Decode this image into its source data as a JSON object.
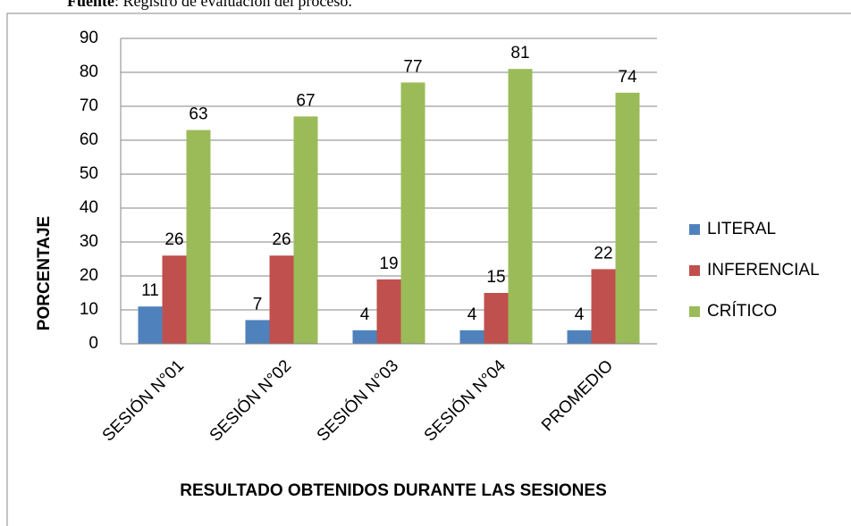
{
  "source": {
    "label": "Fuente",
    "text": ": Registro de evaluación del proceso."
  },
  "chart_data": {
    "type": "bar",
    "xlabel": "RESULTADO OBTENIDOS DURANTE LAS SESIONES",
    "ylabel": "PORCENTAJE",
    "categories": [
      "SESIÓN N°01",
      "SESIÓN N°02",
      "SESIÓN N°03",
      "SESIÓN N°04",
      "PROMEDIO"
    ],
    "series": [
      {
        "name": "LITERAL",
        "color": "#4f81bd",
        "values": [
          11,
          7,
          4,
          4,
          4
        ]
      },
      {
        "name": "INFERENCIAL",
        "color": "#c0504d",
        "values": [
          26,
          26,
          19,
          15,
          22
        ]
      },
      {
        "name": "CRÍTICO",
        "color": "#9bbb59",
        "values": [
          63,
          67,
          77,
          81,
          74
        ]
      }
    ],
    "ylim": [
      0,
      90
    ],
    "yticks": [
      0,
      10,
      20,
      30,
      40,
      50,
      60,
      70,
      80,
      90
    ],
    "grid": true,
    "legend": "right"
  }
}
